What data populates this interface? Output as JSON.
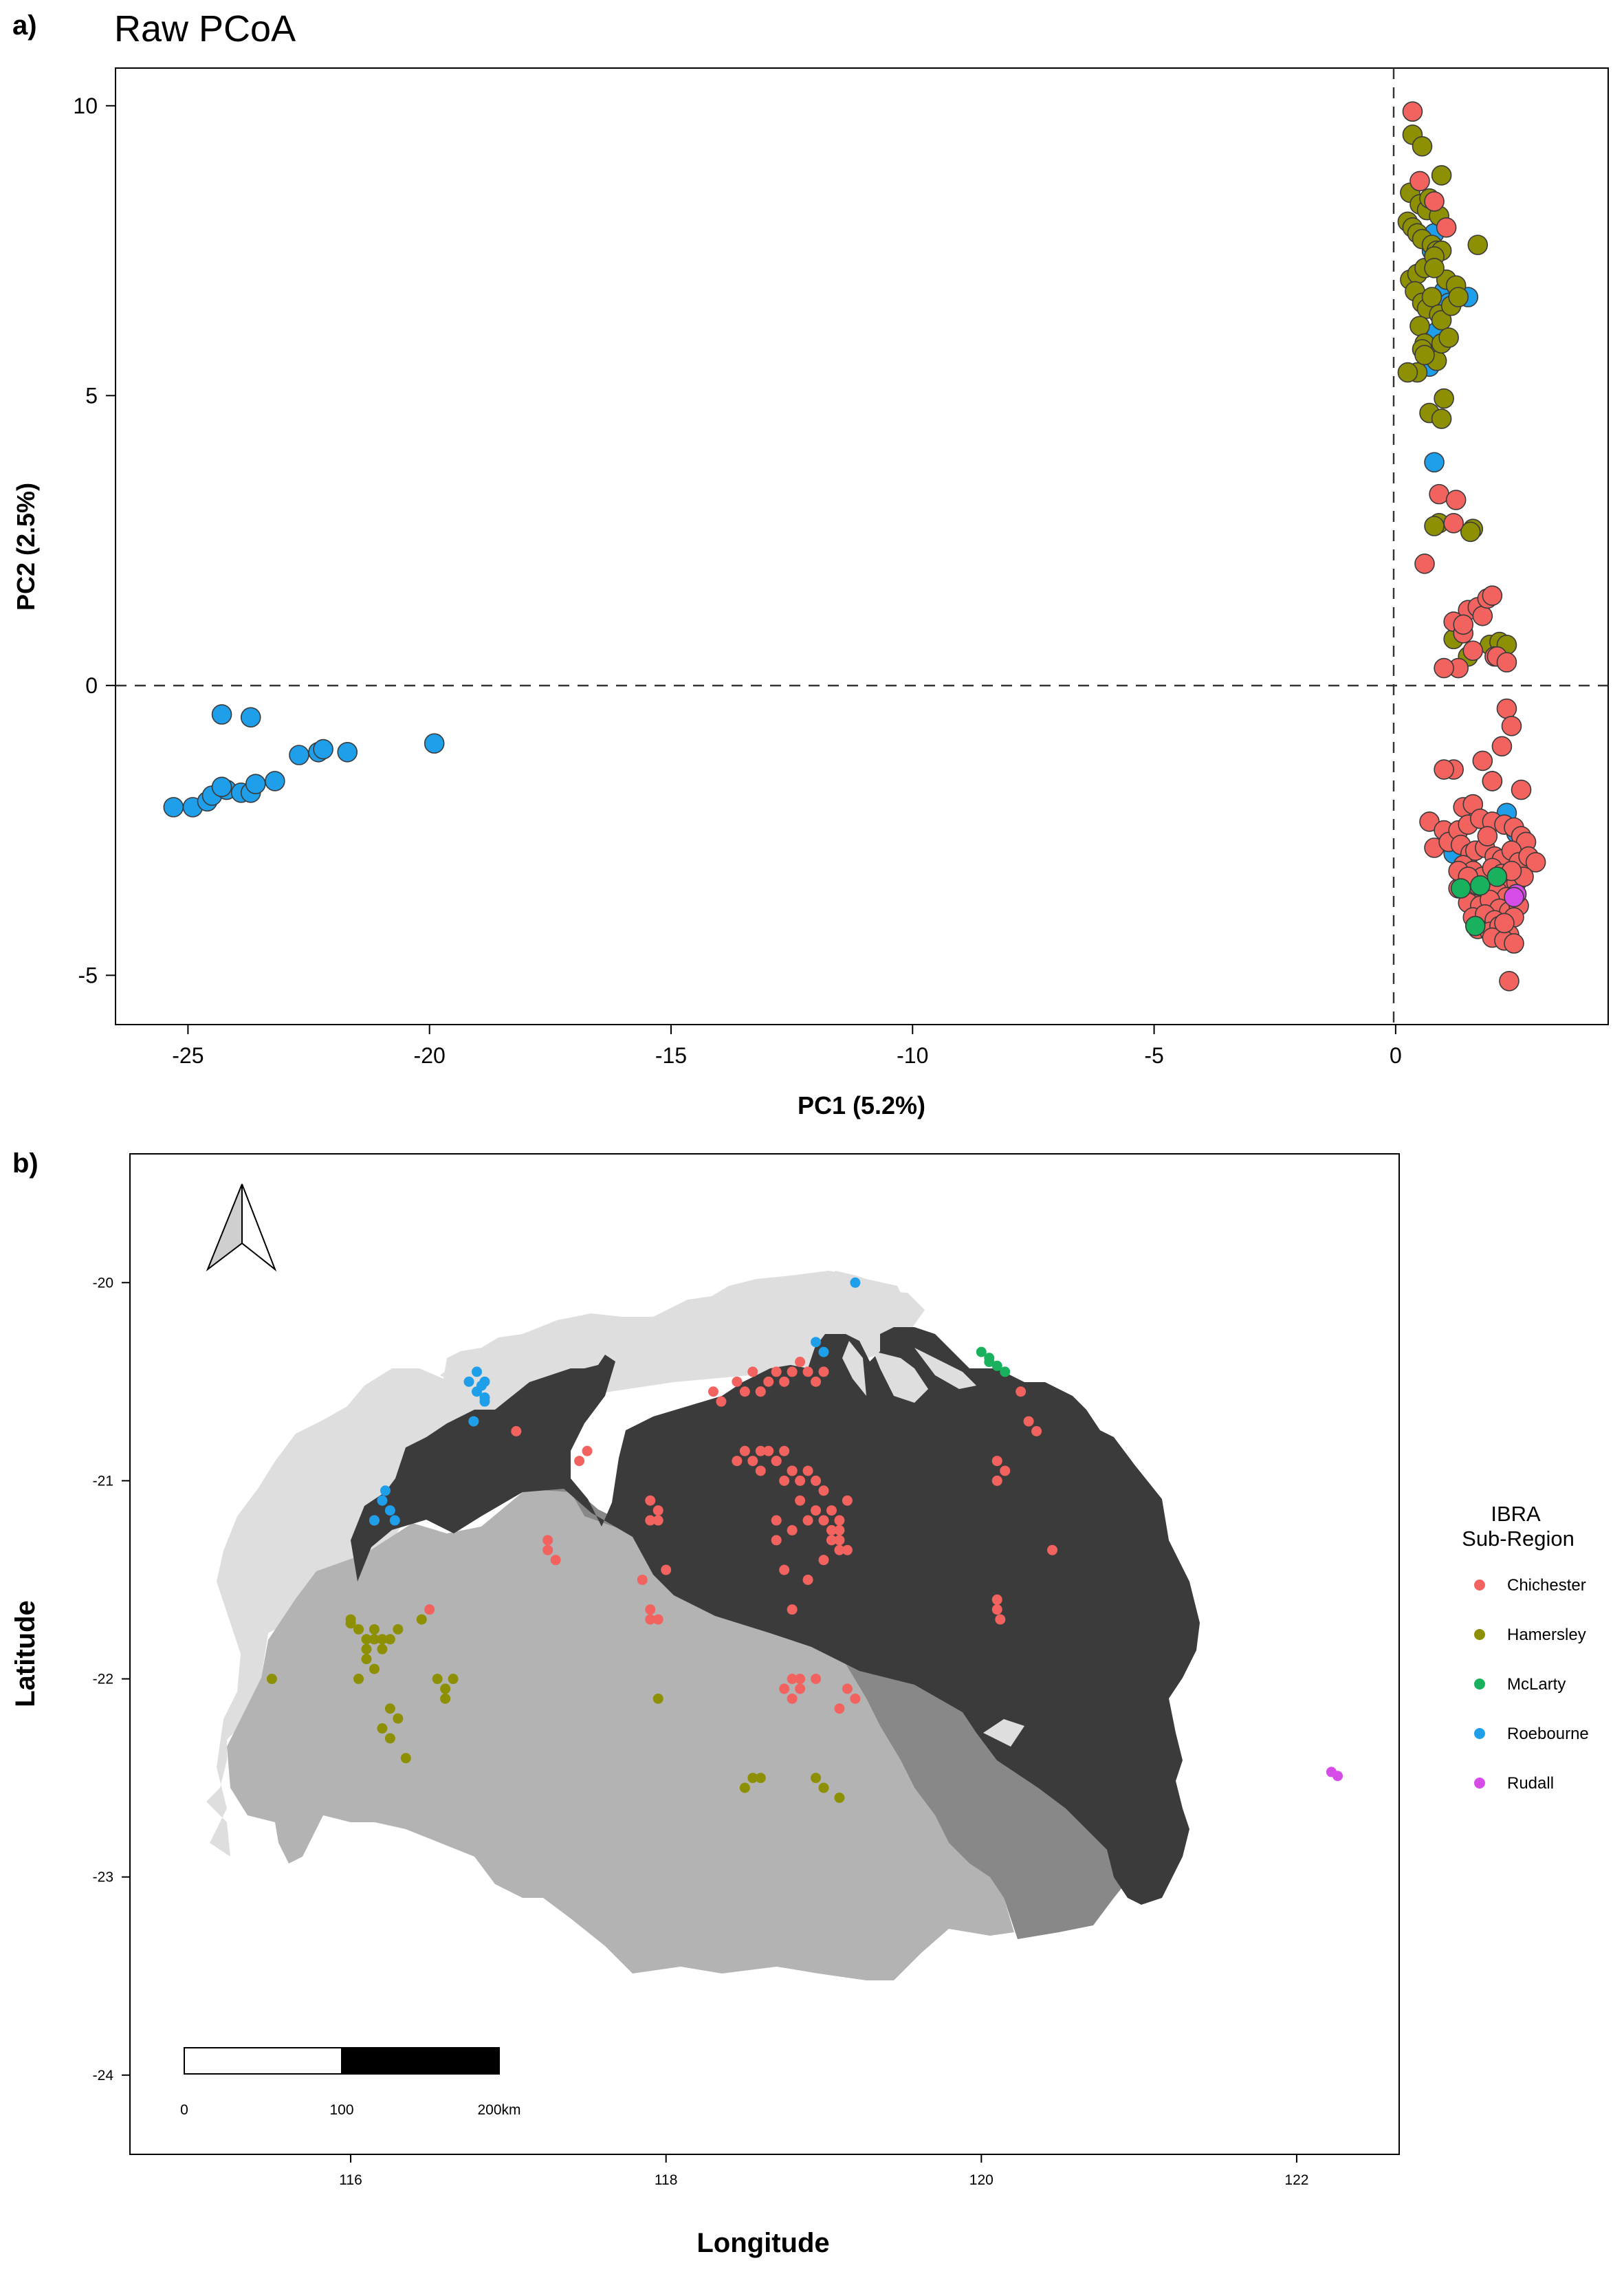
{
  "panel_a": {
    "tag": "a)"
  },
  "panel_b": {
    "tag": "b)"
  },
  "colors": {
    "Chichester": "#F2635F",
    "Hamersley": "#8E9003",
    "McLarty": "#19B15E",
    "Roebourne": "#1F9FEA",
    "Rudall": "#D54DE6"
  },
  "chart_data": [
    {
      "type": "scatter",
      "title": "Raw PCoA",
      "xlabel": "PC1 (5.2%)",
      "ylabel": "PC2 (2.5%)",
      "xlim": [
        -26.5,
        4.4
      ],
      "ylim": [
        -5.85,
        10.65
      ],
      "xticks": [
        -25,
        -20,
        -15,
        -10,
        -5,
        0
      ],
      "yticks": [
        -5,
        0,
        5,
        10
      ],
      "reference_lines": [
        {
          "axis": "x",
          "value": 0,
          "style": "dashed"
        },
        {
          "axis": "y",
          "value": 0,
          "style": "dashed"
        }
      ],
      "grid": false,
      "series": [
        {
          "name": "Roebourne",
          "x": [
            -25.3,
            -24.9,
            -24.6,
            -24.5,
            -24.2,
            -24.3,
            -23.9,
            -23.7,
            -23.6,
            -23.2,
            -22.7,
            -22.3,
            -22.2,
            -21.7,
            -24.3,
            -23.7,
            -19.9,
            0.8,
            0.75,
            0.9,
            1.0,
            0.85,
            0.7,
            1.1,
            0.8,
            2.0,
            2.3,
            2.5,
            2.1,
            1.2,
            1.5
          ],
          "y": [
            -2.1,
            -2.1,
            -2.0,
            -1.9,
            -1.8,
            -1.75,
            -1.85,
            -1.85,
            -1.7,
            -1.65,
            -1.2,
            -1.15,
            -1.1,
            -1.15,
            -0.5,
            -0.55,
            -1.0,
            7.8,
            7.5,
            6.5,
            6.8,
            6.1,
            5.5,
            6.6,
            3.85,
            -1.65,
            -2.2,
            -2.55,
            -3.55,
            -2.9,
            6.7
          ]
        },
        {
          "name": "Hamersley",
          "x": [
            0.35,
            0.55,
            0.95,
            0.3,
            0.5,
            0.65,
            0.7,
            0.9,
            0.25,
            0.35,
            0.45,
            0.55,
            0.75,
            0.85,
            0.95,
            0.3,
            0.45,
            0.6,
            0.8,
            1.05,
            1.25,
            0.4,
            0.55,
            0.65,
            0.75,
            0.9,
            0.95,
            1.15,
            1.3,
            0.5,
            0.6,
            0.7,
            0.85,
            0.95,
            0.55,
            0.45,
            0.25,
            1.0,
            0.7,
            0.95,
            0.8,
            1.6,
            1.55,
            1.7,
            1.95,
            2.15,
            2.3,
            1.2,
            1.5,
            0.9,
            0.8,
            1.1,
            0.6
          ],
          "y": [
            9.5,
            9.3,
            8.8,
            8.5,
            8.3,
            8.2,
            8.4,
            8.1,
            8.0,
            7.9,
            7.8,
            7.7,
            7.6,
            7.5,
            7.5,
            7.0,
            7.1,
            7.2,
            7.4,
            7.0,
            6.9,
            6.8,
            6.6,
            6.5,
            6.7,
            6.4,
            6.3,
            6.55,
            6.7,
            6.2,
            5.9,
            5.7,
            5.6,
            5.9,
            5.8,
            5.4,
            5.4,
            4.95,
            4.7,
            4.6,
            7.2,
            2.7,
            2.65,
            7.6,
            0.7,
            0.75,
            0.7,
            0.8,
            0.5,
            2.8,
            2.75,
            6.0,
            5.7
          ]
        },
        {
          "name": "Chichester",
          "x": [
            0.35,
            0.5,
            0.8,
            1.05,
            0.9,
            1.25,
            1.5,
            1.7,
            1.8,
            1.9,
            2.0,
            2.05,
            1.2,
            1.4,
            1.6,
            2.1,
            2.3,
            1.3,
            2.3,
            2.4,
            2.2,
            2.6,
            2.0,
            1.2,
            1.8,
            1.0,
            0.7,
            1.4,
            1.6,
            1.0,
            0.8,
            1.1,
            1.3,
            1.5,
            1.75,
            2.0,
            2.25,
            2.45,
            2.6,
            2.7,
            1.35,
            1.55,
            1.65,
            1.85,
            2.05,
            2.2,
            2.4,
            2.55,
            2.75,
            2.9,
            1.4,
            1.6,
            1.8,
            2.0,
            2.2,
            2.35,
            2.5,
            2.65,
            1.3,
            1.55,
            1.7,
            1.9,
            2.1,
            2.3,
            2.5,
            1.5,
            1.75,
            1.95,
            2.15,
            2.35,
            2.55,
            1.6,
            1.85,
            2.05,
            2.25,
            2.45,
            1.7,
            1.95,
            2.15,
            2.35,
            2.0,
            2.25,
            2.45,
            1.3,
            1.5,
            1.9,
            2.4,
            2.35,
            2.25,
            0.6,
            1.2,
            1.4,
            1.0
          ],
          "y": [
            9.9,
            8.7,
            8.35,
            7.9,
            3.3,
            3.2,
            1.3,
            1.35,
            1.2,
            1.5,
            1.55,
            0.5,
            1.1,
            0.9,
            0.6,
            0.5,
            0.4,
            0.3,
            -0.4,
            -0.7,
            -1.05,
            -1.8,
            -1.65,
            -1.45,
            -1.3,
            -1.45,
            -2.35,
            -2.1,
            -2.05,
            -2.5,
            -2.8,
            -2.7,
            -2.5,
            -2.4,
            -2.3,
            -2.35,
            -2.4,
            -2.45,
            -2.6,
            -2.7,
            -2.75,
            -2.9,
            -2.85,
            -2.8,
            -2.95,
            -3.0,
            -2.85,
            -3.05,
            -2.95,
            -3.05,
            -3.1,
            -3.2,
            -3.3,
            -3.15,
            -3.25,
            -3.35,
            -3.4,
            -3.3,
            -3.5,
            -3.55,
            -3.45,
            -3.6,
            -3.55,
            -3.65,
            -3.6,
            -3.75,
            -3.8,
            -3.7,
            -3.85,
            -3.9,
            -3.8,
            -4.0,
            -3.95,
            -4.05,
            -4.1,
            -4.0,
            -4.2,
            -4.25,
            -4.15,
            -4.3,
            -4.35,
            -4.4,
            -4.45,
            -3.2,
            -3.3,
            -2.6,
            -3.2,
            -5.1,
            -4.1,
            2.1,
            2.8,
            1.05,
            0.3
          ]
        },
        {
          "name": "McLarty",
          "x": [
            1.35,
            1.65,
            2.1,
            1.75
          ],
          "y": [
            -3.5,
            -4.15,
            -3.3,
            -3.45
          ]
        },
        {
          "name": "Rudall",
          "x": [
            2.5,
            2.45
          ],
          "y": [
            -3.6,
            -3.65
          ]
        }
      ]
    },
    {
      "type": "scatter",
      "xlabel": "Longitude",
      "ylabel": "Latitude",
      "xlim": [
        114.6,
        122.65
      ],
      "ylim": [
        -24.4,
        -19.35
      ],
      "xticks": [
        116,
        118,
        120,
        122
      ],
      "yticks": [
        -24,
        -23,
        -22,
        -21,
        -20
      ],
      "legend": {
        "title": "IBRA\nSub-Region",
        "position": "right"
      },
      "scale_bar": {
        "labels": [
          "0",
          "100",
          "200km"
        ]
      },
      "series": [
        {
          "name": "Chichester",
          "x": [
            116.15,
            116.5,
            117.05,
            117.25,
            117.25,
            117.3,
            117.45,
            117.5,
            117.95,
            117.9,
            118.0,
            117.85,
            117.9,
            117.9,
            117.95,
            118.3,
            118.35,
            118.45,
            118.5,
            118.55,
            118.6,
            118.65,
            118.7,
            118.75,
            118.8,
            118.85,
            118.9,
            118.95,
            119.0,
            118.6,
            118.7,
            118.75,
            118.8,
            118.45,
            118.5,
            118.55,
            118.6,
            118.65,
            118.7,
            118.75,
            118.8,
            118.85,
            118.9,
            118.95,
            119.0,
            118.7,
            118.8,
            118.9,
            118.85,
            118.95,
            119.05,
            119.0,
            119.1,
            119.05,
            119.1,
            119.0,
            119.15,
            119.1,
            118.75,
            118.8,
            118.85,
            119.15,
            119.2,
            119.1,
            120.1,
            120.15,
            120.1,
            120.35,
            120.3,
            120.25,
            120.1,
            120.1,
            120.12,
            120.45,
            118.85,
            118.95,
            118.8,
            118.75,
            118.8,
            118.7,
            119.05,
            119.1,
            119.15,
            118.9,
            118.6,
            117.9,
            117.95
          ],
          "y": [
            -21.2,
            -21.65,
            -20.75,
            -21.3,
            -21.35,
            -21.4,
            -20.9,
            -20.85,
            -21.15,
            -21.2,
            -21.45,
            -21.5,
            -21.65,
            -21.7,
            -21.7,
            -20.55,
            -20.6,
            -20.5,
            -20.55,
            -20.45,
            -20.55,
            -20.5,
            -20.45,
            -20.5,
            -20.45,
            -20.4,
            -20.45,
            -20.5,
            -20.45,
            -20.85,
            -20.9,
            -20.85,
            -20.95,
            -20.9,
            -20.85,
            -20.9,
            -20.95,
            -20.85,
            -20.9,
            -21.0,
            -20.95,
            -21.0,
            -20.95,
            -21.0,
            -21.05,
            -21.2,
            -21.25,
            -21.2,
            -21.1,
            -21.15,
            -21.15,
            -21.2,
            -21.25,
            -21.3,
            -21.35,
            -21.4,
            -21.1,
            -21.2,
            -21.45,
            -22.0,
            -22.05,
            -22.05,
            -22.1,
            -22.15,
            -20.9,
            -20.95,
            -21.0,
            -20.75,
            -20.7,
            -20.55,
            -21.6,
            -21.65,
            -21.7,
            -21.35,
            -22.0,
            -22.0,
            -22.1,
            -22.05,
            -21.65,
            -21.3,
            -21.25,
            -21.3,
            -21.35,
            -21.5,
            -20.55,
            -21.1,
            -21.2
          ]
        },
        {
          "name": "Hamersley",
          "x": [
            116.0,
            116.05,
            116.1,
            116.15,
            116.2,
            116.1,
            116.05,
            116.15,
            116.1,
            116.2,
            116.15,
            116.25,
            116.2,
            116.3,
            116.25,
            116.35,
            116.55,
            116.6,
            116.65,
            116.6,
            116.45,
            115.5,
            117.95,
            118.55,
            118.6,
            118.5,
            118.95,
            119.0,
            119.1,
            116.3,
            116.25,
            116.0
          ],
          "y": [
            -21.7,
            -21.75,
            -21.8,
            -21.75,
            -21.85,
            -21.9,
            -22.0,
            -21.8,
            -21.85,
            -21.8,
            -21.95,
            -22.15,
            -22.25,
            -22.2,
            -22.3,
            -22.4,
            -22.0,
            -22.05,
            -22.0,
            -22.1,
            -21.7,
            -22.0,
            -22.1,
            -22.5,
            -22.5,
            -22.55,
            -22.5,
            -22.55,
            -22.6,
            -21.75,
            -21.8,
            -21.72
          ]
        },
        {
          "name": "McLarty",
          "x": [
            120.0,
            120.05,
            120.1,
            120.15,
            120.05
          ],
          "y": [
            -20.35,
            -20.4,
            -20.42,
            -20.45,
            -20.38
          ]
        },
        {
          "name": "Roebourne",
          "x": [
            116.8,
            116.85,
            116.8,
            116.85,
            116.83,
            116.78,
            116.2,
            116.25,
            116.15,
            116.22,
            116.28,
            119.2,
            119.0,
            118.95,
            116.85,
            116.75
          ],
          "y": [
            -20.45,
            -20.5,
            -20.55,
            -20.6,
            -20.52,
            -20.7,
            -21.1,
            -21.15,
            -21.2,
            -21.05,
            -21.2,
            -20.0,
            -20.35,
            -20.3,
            -20.58,
            -20.5
          ]
        },
        {
          "name": "Rudall",
          "x": [
            122.22,
            122.26
          ],
          "y": [
            -22.47,
            -22.49
          ]
        }
      ]
    }
  ]
}
